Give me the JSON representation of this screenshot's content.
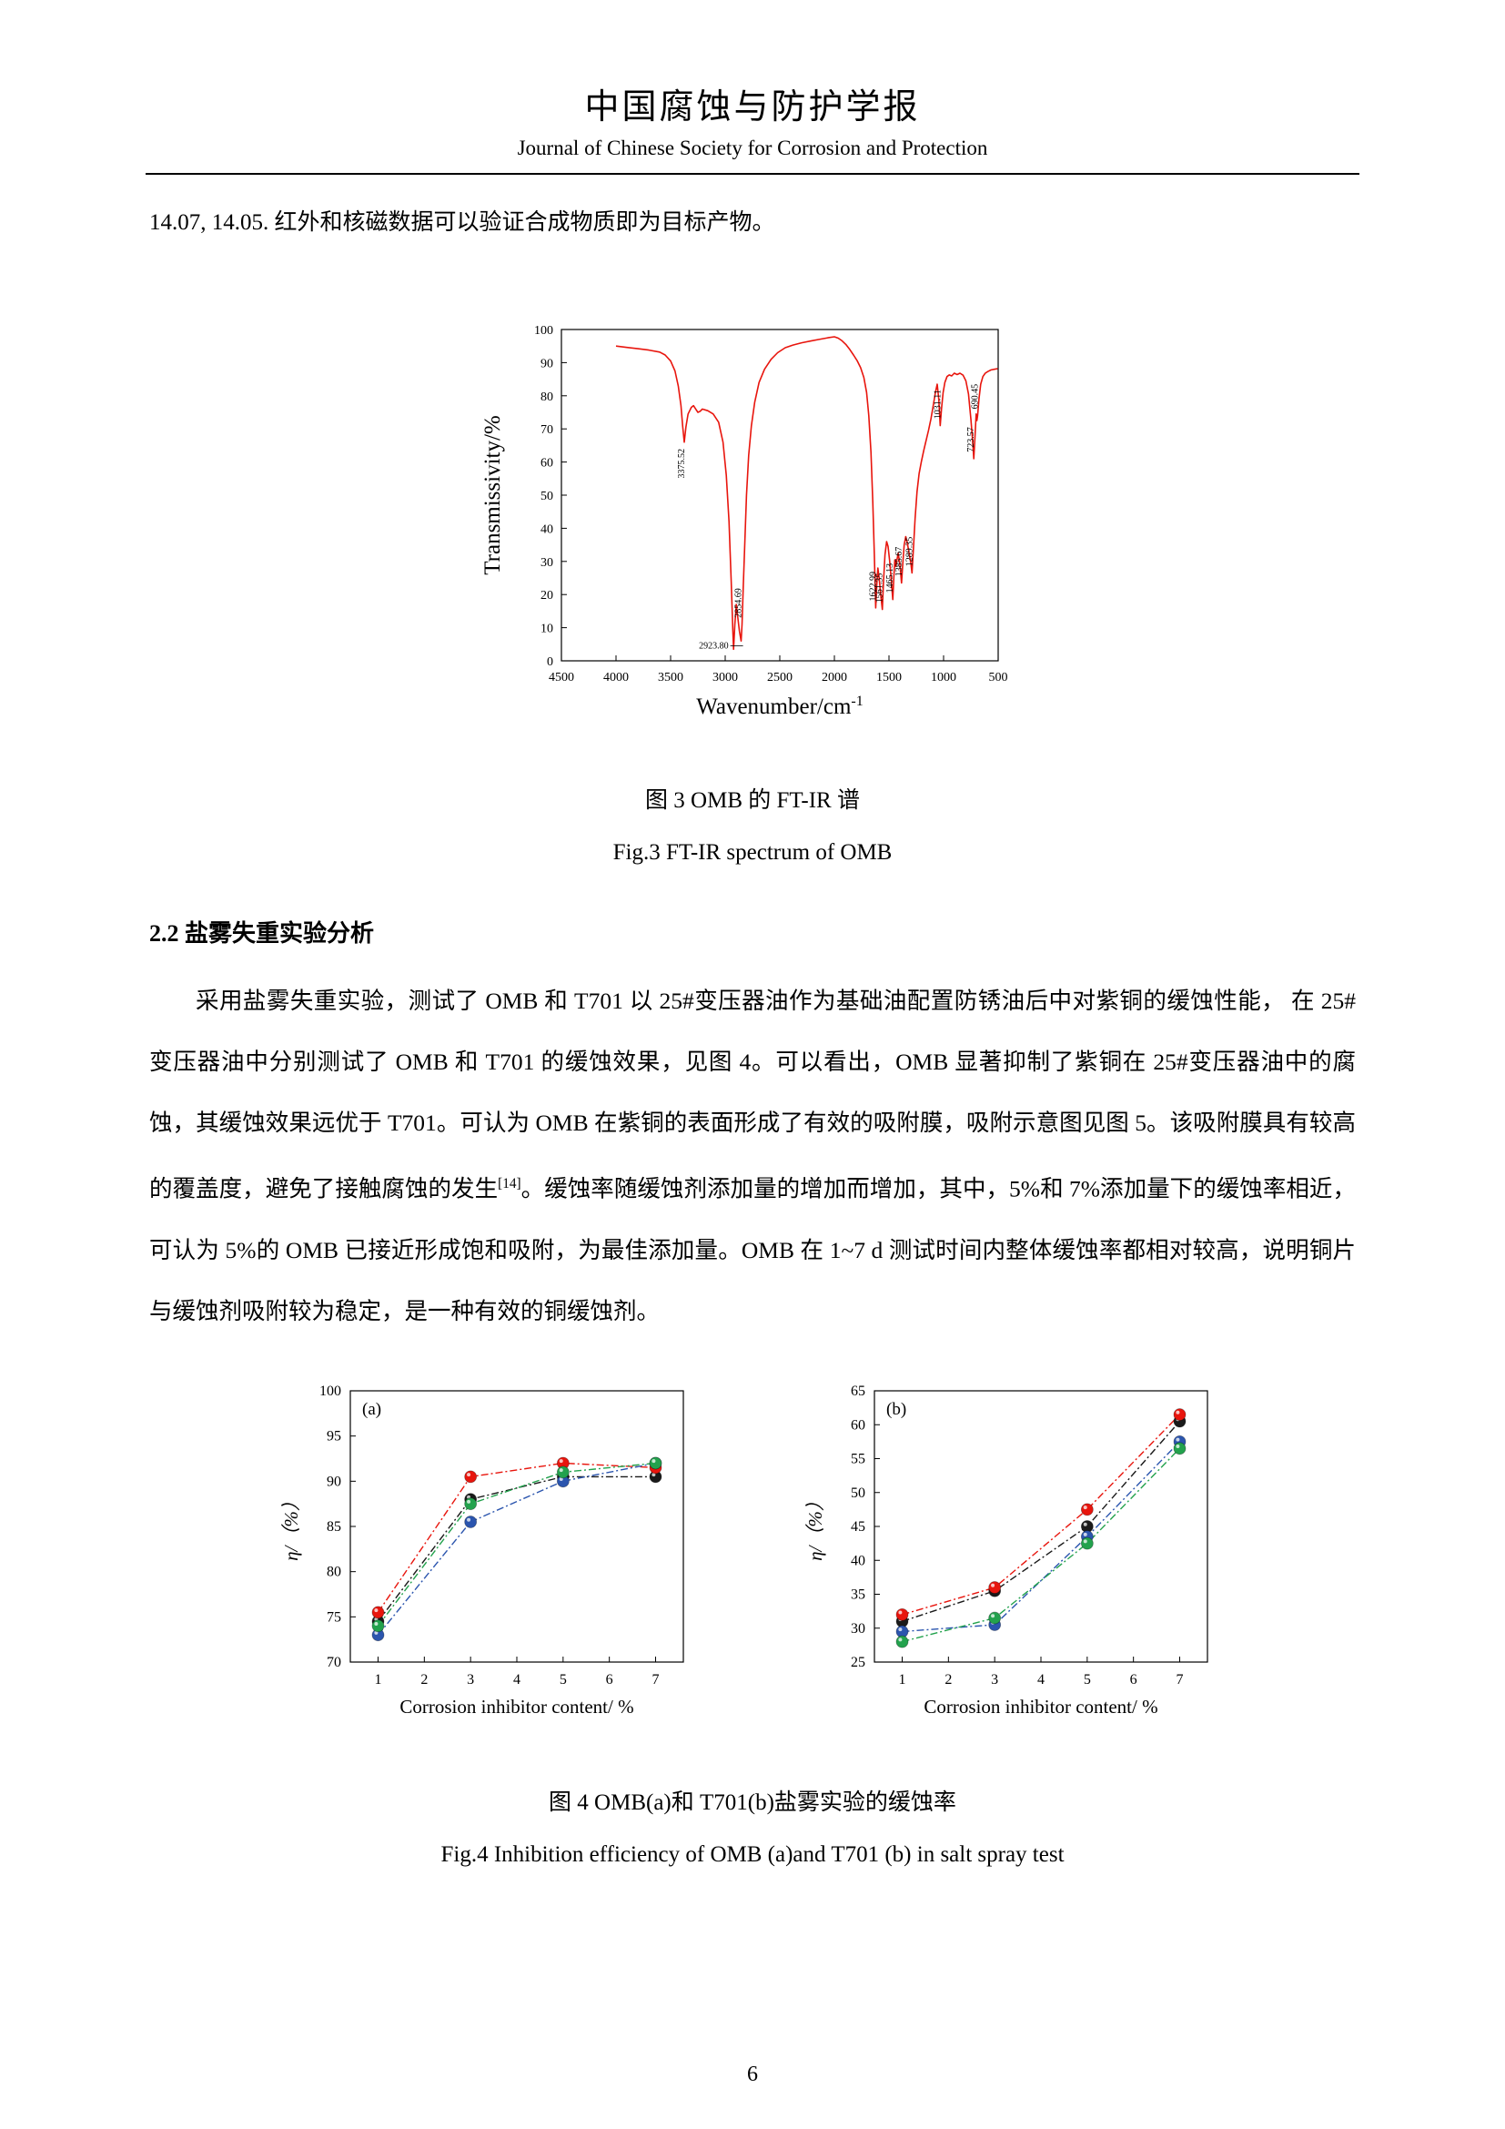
{
  "header": {
    "title_cn": "中国腐蚀与防护学报",
    "title_en": "Journal of Chinese Society for Corrosion and Protection"
  },
  "body": {
    "intro": "14.07, 14.05. 红外和核磁数据可以验证合成物质即为目标产物。",
    "section_heading": "2.2 盐雾失重实验分析",
    "paragraph": {
      "part1": "采用盐雾失重实验，测试了 OMB 和 T701 以 25#变压器油作为基础油配置防锈油后中对紫铜的缓蚀性能，  在 25#变压器油中分别测试了 OMB 和 T701 的缓蚀效果，见图 4。可以看出，OMB 显著抑制了紫铜在 25#变压器油中的腐蚀，其缓蚀效果远优于 T701。可认为 OMB 在紫铜的表面形成了有效的吸附膜，吸附示意图见图 5。该吸附膜具有较高的覆盖度，避免了接触腐蚀的发生",
      "ref": "[14]",
      "part2": "。缓蚀率随缓蚀剂添加量的增加而增加，其中，5%和 7%添加量下的缓蚀率相近，可认为 5%的 OMB 已接近形成饱和吸附，为最佳添加量。OMB 在 1~7 d 测试时间内整体缓蚀率都相对较高，说明铜片与缓蚀剂吸附较为稳定，是一种有效的铜缓蚀剂。"
    }
  },
  "figures": {
    "fig3": {
      "caption_cn": "图 3 OMB 的 FT-IR 谱",
      "caption_en": "Fig.3 FT-IR spectrum of OMB"
    },
    "fig4": {
      "caption_cn": "图 4 OMB(a)和 T701(b)盐雾实验的缓蚀率",
      "caption_en": "Fig.4 Inhibition efficiency of OMB (a)and T701 (b) in salt spray test"
    }
  },
  "footer": {
    "page_number": "6"
  },
  "chart_data": [
    {
      "type": "line",
      "name": "ftir-spectrum",
      "xlabel": "Wavenumber/cm",
      "xlabel_sup": "-1",
      "ylabel": "Transmissivity/%",
      "xlim": [
        4500,
        500
      ],
      "ylim": [
        0,
        100
      ],
      "x_ticks": [
        4500,
        4000,
        3500,
        3000,
        2500,
        2000,
        1500,
        1000,
        500
      ],
      "y_ticks": [
        0,
        10,
        20,
        30,
        40,
        50,
        60,
        70,
        80,
        90,
        100
      ],
      "line_color": "#e8150d",
      "grid": false,
      "points": [
        [
          4000,
          95
        ],
        [
          3900,
          94.6
        ],
        [
          3800,
          94.2
        ],
        [
          3700,
          93.8
        ],
        [
          3600,
          93.2
        ],
        [
          3550,
          92.3
        ],
        [
          3500,
          90.5
        ],
        [
          3460,
          87.5
        ],
        [
          3430,
          83
        ],
        [
          3405,
          77
        ],
        [
          3390,
          71
        ],
        [
          3375,
          66
        ],
        [
          3360,
          70.5
        ],
        [
          3340,
          74.5
        ],
        [
          3310,
          76.5
        ],
        [
          3290,
          77
        ],
        [
          3270,
          76
        ],
        [
          3250,
          75
        ],
        [
          3230,
          75.3
        ],
        [
          3210,
          76
        ],
        [
          3160,
          75.5
        ],
        [
          3110,
          74.5
        ],
        [
          3060,
          72
        ],
        [
          3020,
          66
        ],
        [
          2990,
          56
        ],
        [
          2965,
          42
        ],
        [
          2945,
          24
        ],
        [
          2930,
          9
        ],
        [
          2923,
          3.5
        ],
        [
          2912,
          11
        ],
        [
          2898,
          17
        ],
        [
          2884,
          13
        ],
        [
          2870,
          9
        ],
        [
          2854,
          6
        ],
        [
          2846,
          11
        ],
        [
          2835,
          22
        ],
        [
          2820,
          36
        ],
        [
          2805,
          50
        ],
        [
          2785,
          62
        ],
        [
          2760,
          71
        ],
        [
          2730,
          78
        ],
        [
          2690,
          84
        ],
        [
          2640,
          88
        ],
        [
          2580,
          91
        ],
        [
          2520,
          93
        ],
        [
          2450,
          94.5
        ],
        [
          2380,
          95.3
        ],
        [
          2300,
          96
        ],
        [
          2220,
          96.5
        ],
        [
          2140,
          97
        ],
        [
          2060,
          97.5
        ],
        [
          2000,
          97.8
        ],
        [
          1965,
          97.4
        ],
        [
          1930,
          96.6
        ],
        [
          1895,
          95.5
        ],
        [
          1860,
          94
        ],
        [
          1825,
          92.3
        ],
        [
          1790,
          90.5
        ],
        [
          1760,
          88.5
        ],
        [
          1730,
          85.5
        ],
        [
          1705,
          81
        ],
        [
          1685,
          74
        ],
        [
          1665,
          63
        ],
        [
          1648,
          48
        ],
        [
          1634,
          32
        ],
        [
          1622,
          16
        ],
        [
          1612,
          23
        ],
        [
          1602,
          28
        ],
        [
          1590,
          25
        ],
        [
          1576,
          20
        ],
        [
          1561,
          15.5
        ],
        [
          1550,
          24
        ],
        [
          1537,
          32
        ],
        [
          1522,
          36
        ],
        [
          1508,
          34.5
        ],
        [
          1493,
          30
        ],
        [
          1478,
          24
        ],
        [
          1465,
          18.5
        ],
        [
          1456,
          25
        ],
        [
          1447,
          30.5
        ],
        [
          1437,
          28.5
        ],
        [
          1427,
          30.5
        ],
        [
          1416,
          32.5
        ],
        [
          1400,
          29
        ],
        [
          1385,
          23.5
        ],
        [
          1374,
          29
        ],
        [
          1361,
          35
        ],
        [
          1347,
          37.5
        ],
        [
          1332,
          35.5
        ],
        [
          1316,
          32.5
        ],
        [
          1300,
          29.5
        ],
        [
          1289,
          26.5
        ],
        [
          1276,
          34
        ],
        [
          1261,
          43
        ],
        [
          1243,
          51
        ],
        [
          1224,
          56.5
        ],
        [
          1204,
          60
        ],
        [
          1182,
          63.5
        ],
        [
          1160,
          66.5
        ],
        [
          1138,
          69.5
        ],
        [
          1116,
          73
        ],
        [
          1095,
          77
        ],
        [
          1075,
          81
        ],
        [
          1058,
          83.5
        ],
        [
          1044,
          79
        ],
        [
          1031,
          71
        ],
        [
          1019,
          76
        ],
        [
          1004,
          81
        ],
        [
          988,
          84
        ],
        [
          968,
          85.8
        ],
        [
          948,
          86.3
        ],
        [
          926,
          86
        ],
        [
          902,
          86.8
        ],
        [
          876,
          86.4
        ],
        [
          850,
          86.8
        ],
        [
          822,
          86.2
        ],
        [
          796,
          84.5
        ],
        [
          772,
          80.5
        ],
        [
          750,
          73
        ],
        [
          734,
          66.5
        ],
        [
          723,
          61
        ],
        [
          712,
          68
        ],
        [
          702,
          74.5
        ],
        [
          695,
          72.5
        ],
        [
          688,
          74
        ],
        [
          676,
          79
        ],
        [
          660,
          83.5
        ],
        [
          640,
          85.8
        ],
        [
          618,
          86.8
        ],
        [
          595,
          87.3
        ],
        [
          565,
          87.8
        ],
        [
          535,
          88
        ],
        [
          505,
          88.2
        ]
      ],
      "peak_labels": [
        {
          "x": 3375,
          "y": 64,
          "text": "3375.52",
          "rot": -90,
          "anchor": "end"
        },
        {
          "x": 2945,
          "y": 4.5,
          "text": "2923.80",
          "rot": 0
        },
        {
          "x": 2854,
          "y": 13,
          "text": "2854.69",
          "rot": -90,
          "anchor": "start"
        },
        {
          "x": 1622,
          "y": 18,
          "text": "1622.99",
          "rot": -90,
          "anchor": "start"
        },
        {
          "x": 1561,
          "y": 17.5,
          "text": "1561.35",
          "rot": -90,
          "anchor": "start"
        },
        {
          "x": 1465,
          "y": 20.5,
          "text": "1465.13",
          "rot": -90,
          "anchor": "start"
        },
        {
          "x": 1385,
          "y": 25.5,
          "text": "1385.67",
          "rot": -90,
          "anchor": "start"
        },
        {
          "x": 1289,
          "y": 28.5,
          "text": "1289.35",
          "rot": -90,
          "anchor": "start"
        },
        {
          "x": 1031,
          "y": 73,
          "text": "1031.11",
          "rot": -90,
          "anchor": "start"
        },
        {
          "x": 723,
          "y": 63,
          "text": "723.57",
          "rot": -90,
          "anchor": "start"
        },
        {
          "x": 688,
          "y": 76,
          "text": "690.45",
          "rot": -90,
          "anchor": "start"
        }
      ]
    },
    {
      "type": "scatter",
      "name": "salt-spray-efficiency-OMB",
      "panel_label": "(a)",
      "xlabel": "Corrosion inhibitor content/ %",
      "ylabel": "η/（%）",
      "xlim": [
        0.4,
        7.6
      ],
      "ylim": [
        70,
        100
      ],
      "x_ticks": [
        1,
        2,
        3,
        4,
        5,
        6,
        7
      ],
      "y_ticks": [
        70,
        75,
        80,
        85,
        90,
        95,
        100
      ],
      "x": [
        1,
        3,
        5,
        7
      ],
      "series": [
        {
          "name": "series-1",
          "color": "#1a1a1a",
          "values": [
            74.5,
            88,
            90.5,
            90.5
          ]
        },
        {
          "name": "series-2",
          "color": "#e8150d",
          "values": [
            75.5,
            90.5,
            92,
            91.5
          ]
        },
        {
          "name": "series-3",
          "color": "#2b55ae",
          "values": [
            73,
            85.5,
            90,
            92
          ]
        },
        {
          "name": "series-4",
          "color": "#23a24d",
          "values": [
            74,
            87.5,
            91,
            92
          ]
        }
      ]
    },
    {
      "type": "scatter",
      "name": "salt-spray-efficiency-T701",
      "panel_label": "(b)",
      "xlabel": "Corrosion inhibitor content/ %",
      "ylabel": "η/（%）",
      "xlim": [
        0.4,
        7.6
      ],
      "ylim": [
        25,
        65
      ],
      "x_ticks": [
        1,
        2,
        3,
        4,
        5,
        6,
        7
      ],
      "y_ticks": [
        25,
        30,
        35,
        40,
        45,
        50,
        55,
        60,
        65
      ],
      "x": [
        1,
        3,
        5,
        7
      ],
      "series": [
        {
          "name": "series-1",
          "color": "#1a1a1a",
          "values": [
            31,
            35.5,
            45,
            60.5
          ]
        },
        {
          "name": "series-2",
          "color": "#e8150d",
          "values": [
            32,
            36,
            47.5,
            61.5
          ]
        },
        {
          "name": "series-3",
          "color": "#2b55ae",
          "values": [
            29.5,
            30.5,
            43.5,
            57.5
          ]
        },
        {
          "name": "series-4",
          "color": "#23a24d",
          "values": [
            28,
            31.5,
            42.5,
            56.5
          ]
        }
      ]
    }
  ]
}
